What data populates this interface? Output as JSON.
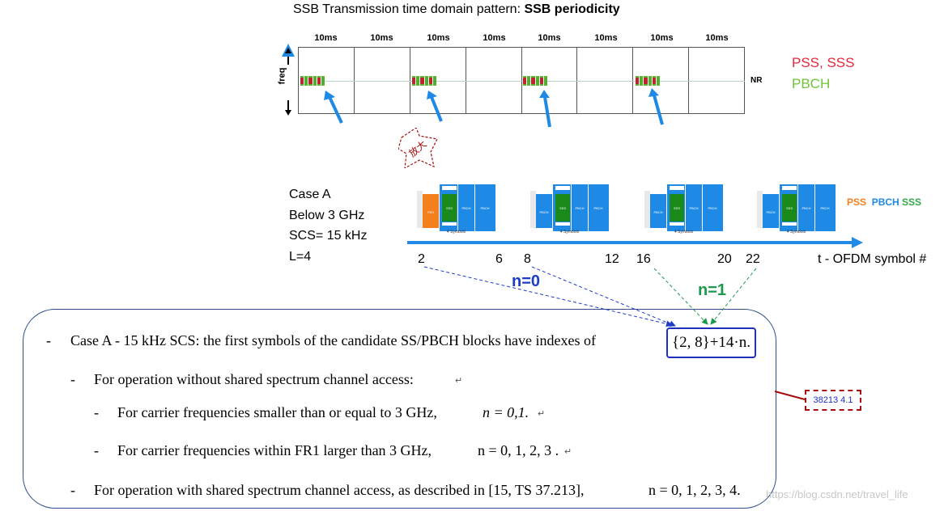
{
  "title": {
    "prefix": "SSB Transmission time domain pattern: ",
    "bold": "SSB periodicity"
  },
  "frames": [
    "10ms",
    "10ms",
    "10ms",
    "10ms",
    "10ms",
    "10ms",
    "10ms",
    "10ms"
  ],
  "freq_label": "freq",
  "nr_label": "NR",
  "legend_top": {
    "pss_sss": "PSS, SSS",
    "pbch": "PBCH"
  },
  "zoom_text": "放大",
  "case_lines": [
    "Case A",
    "Below 3 GHz",
    "SCS= 15 kHz",
    "L=4"
  ],
  "slot_caption": "4 Symbols",
  "slot_legend": {
    "pss": "PSS",
    "pbch": "PBCH",
    "sss": "SSS"
  },
  "ticks": [
    "2",
    "6",
    "8",
    "12",
    "16",
    "20",
    "22"
  ],
  "axis_label": "t - OFDM symbol #",
  "n0": "n=0",
  "n1": "n=1",
  "spec": {
    "line1": "Case A - 15 kHz SCS: the first symbols of the candidate SS/PBCH blocks have indexes of",
    "formula": "{2, 8}+14·n.",
    "line2": "For operation without shared spectrum channel access:",
    "line3": "For carrier frequencies smaller than or equal to 3 GHz,",
    "line3_n": "n = 0,1.",
    "line4": "For carrier frequencies within FR1 larger than 3 GHz,",
    "line4_n": "n = 0, 1, 2, 3 .",
    "line5": "For operation with shared spectrum channel access, as described in [15, TS 37.213],",
    "line5_n": "n = 0, 1, 2, 3, 4.",
    "dash": "-",
    "para_mark": "↵"
  },
  "ref_tag": "38213 4.1",
  "watermark": "https://blog.csdn.net/travel_life",
  "colors": {
    "pss": "#f47f1f",
    "pbch": "#1e8ae5",
    "sss": "#1a8a1a",
    "blue_arrow": "#1e8ae5",
    "n0": "#1e3cc8",
    "n1": "#1b9a4b"
  }
}
